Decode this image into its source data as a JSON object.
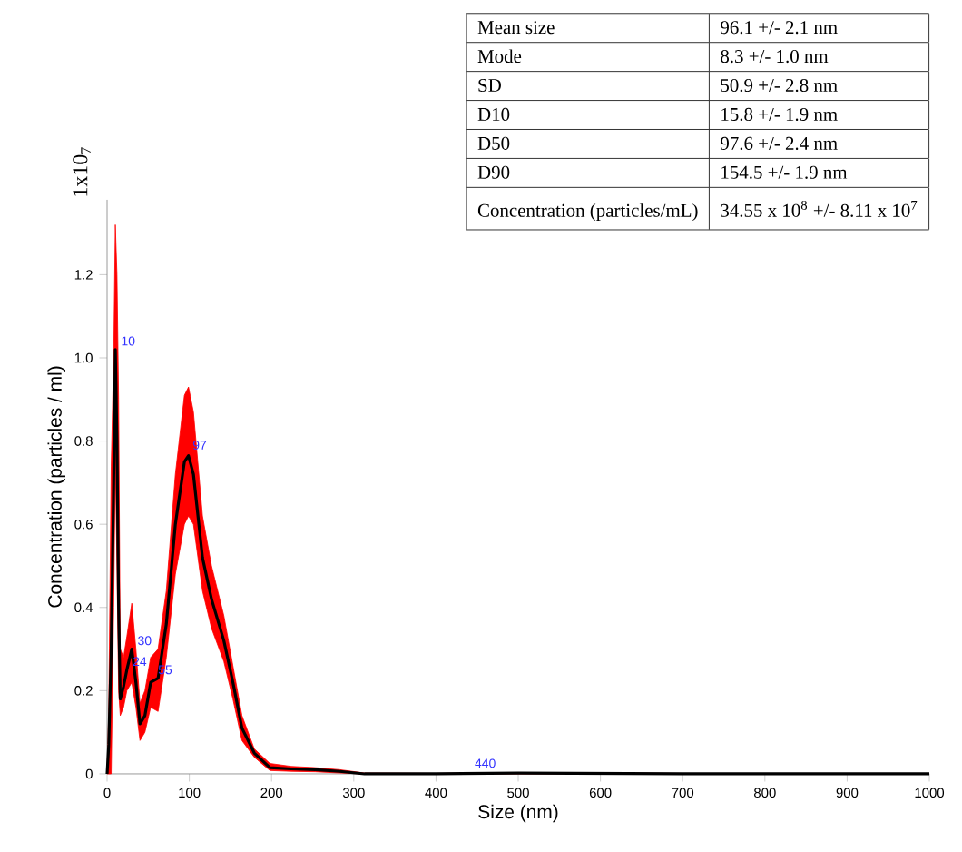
{
  "chart_data": {
    "type": "line",
    "xlabel": "Size (nm)",
    "ylabel": "Concentration (particles / ml)",
    "x": [
      0,
      2,
      5,
      8,
      10,
      12,
      14,
      16,
      20,
      24,
      30,
      35,
      40,
      46,
      53,
      62,
      72,
      83,
      94,
      99,
      105,
      116,
      127,
      142,
      153,
      164,
      179,
      198,
      224,
      253,
      283,
      313,
      400,
      500,
      700,
      1000
    ],
    "series": [
      {
        "color": "#000000",
        "values": [
          0,
          0.07,
          0.3,
          0.7,
          1.02,
          0.8,
          0.4,
          0.18,
          0.21,
          0.25,
          0.3,
          0.22,
          0.12,
          0.14,
          0.22,
          0.23,
          0.36,
          0.6,
          0.75,
          0.765,
          0.72,
          0.52,
          0.42,
          0.32,
          0.22,
          0.11,
          0.05,
          0.015,
          0.012,
          0.01,
          0.006,
          0,
          0,
          0.002,
          0,
          0
        ],
        "upper": [
          0,
          0.15,
          0.74,
          1.0,
          1.32,
          1.2,
          0.9,
          0.3,
          0.28,
          0.33,
          0.41,
          0.3,
          0.17,
          0.2,
          0.28,
          0.3,
          0.44,
          0.72,
          0.91,
          0.93,
          0.87,
          0.62,
          0.5,
          0.38,
          0.26,
          0.14,
          0.06,
          0.025,
          0.018,
          0.015,
          0.01,
          0.002,
          0.001,
          0.003,
          0.001,
          0
        ],
        "lower": [
          0,
          0,
          0,
          0.4,
          0.75,
          0.5,
          0.2,
          0.14,
          0.16,
          0.2,
          0.22,
          0.16,
          0.08,
          0.1,
          0.16,
          0.15,
          0.28,
          0.48,
          0.6,
          0.62,
          0.6,
          0.44,
          0.35,
          0.27,
          0.18,
          0.08,
          0.04,
          0.008,
          0.006,
          0.005,
          0.002,
          0,
          0,
          0,
          0,
          0
        ]
      }
    ],
    "xlim": [
      0,
      1000
    ],
    "ylim": [
      0,
      1.38
    ],
    "xticks": [
      0,
      100,
      200,
      300,
      400,
      500,
      600,
      700,
      800,
      900,
      1000
    ],
    "yticks": [
      0,
      0.2,
      0.4,
      0.6,
      0.8,
      {
        "value": 1,
        "label": "1.0"
      },
      1.2
    ],
    "annotations": [
      "1x10$_{7}$",
      "Mean size",
      "96.1 +/- 2.1 nm",
      "Mode",
      "8.3 +/- 1.0 nm",
      "SD",
      "50.9 +/- 2.8 nm",
      "D10",
      "15.8 +/- 1.9 nm",
      "D50",
      "97.6 +/- 2.4 nm",
      "D90",
      "154.5 +/- 1.9 nm",
      "Concentration (particles/mL)",
      "34.55 x 10$^{8}$ +/- 8.11 x 10$^{7}$",
      {
        "text": "10",
        "x": 10,
        "y": 1.02
      },
      {
        "text": "30",
        "x": 30,
        "y": 0.3
      },
      {
        "text": "24",
        "x": 24,
        "y": 0.25
      },
      {
        "text": "55",
        "x": 55,
        "y": 0.23
      },
      {
        "text": "97",
        "x": 97,
        "y": 0.77
      },
      {
        "text": "440",
        "x": 440,
        "y": 0.005
      }
    ]
  }
}
